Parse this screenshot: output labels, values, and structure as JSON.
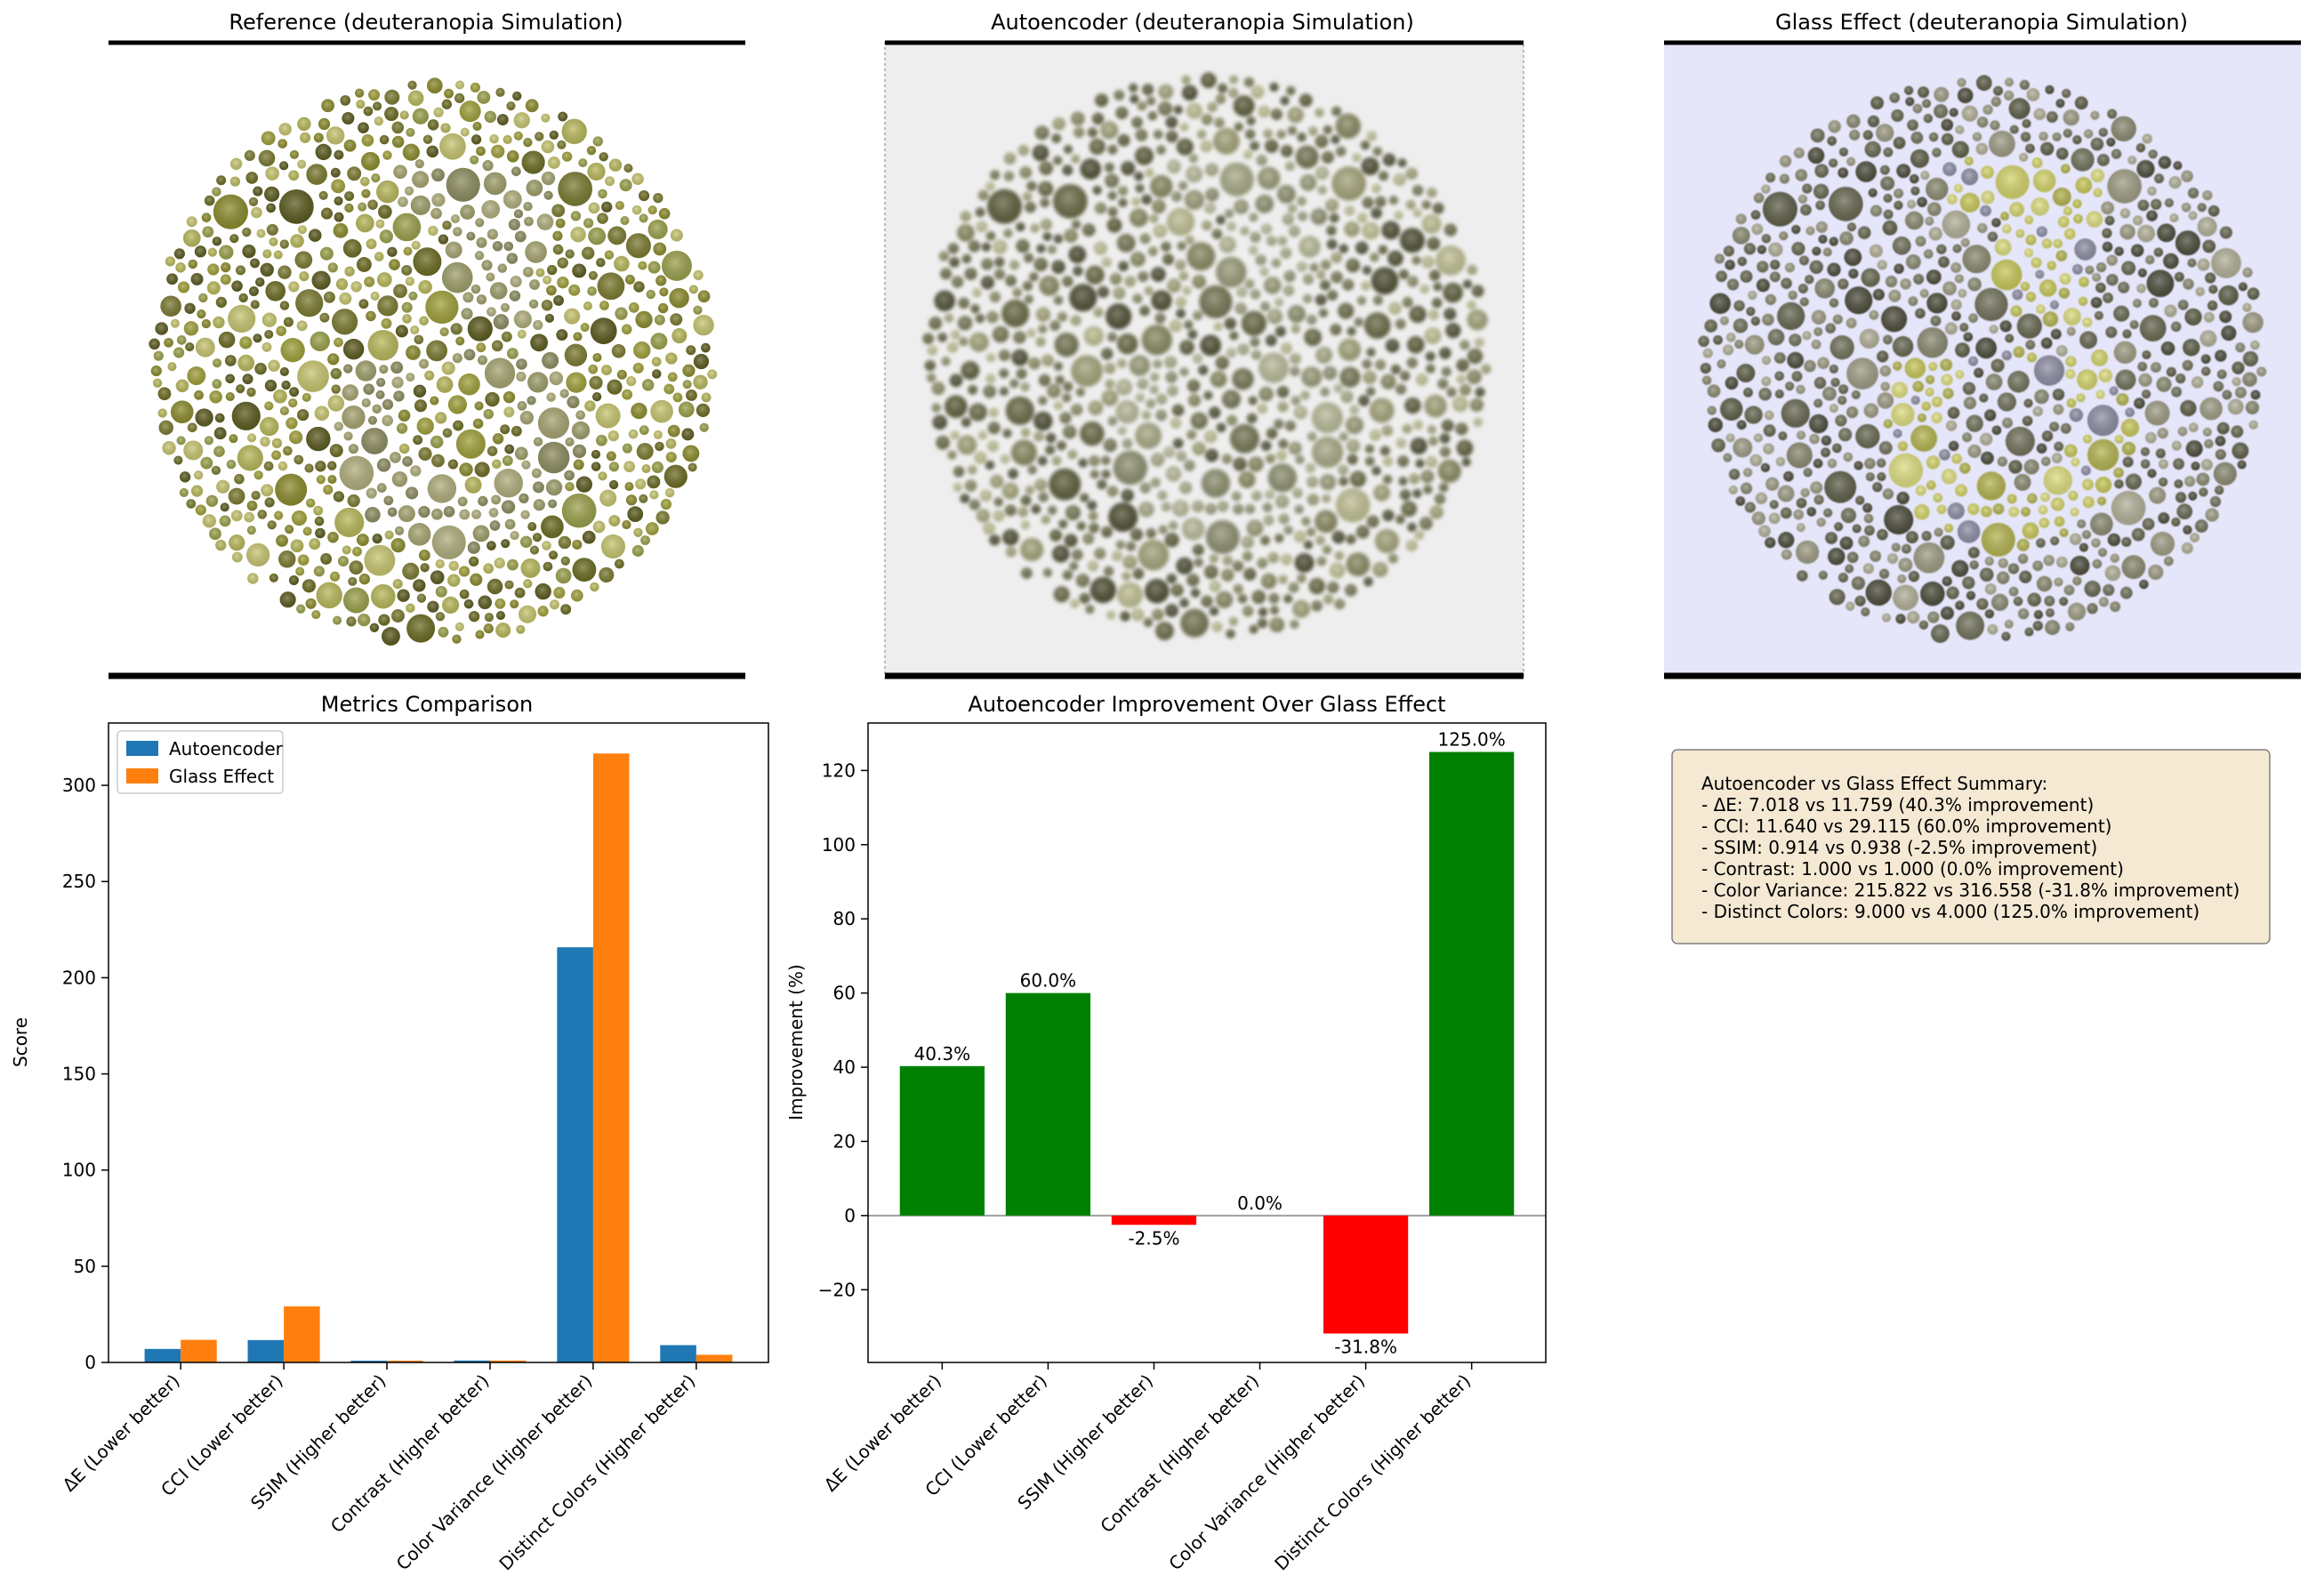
{
  "panels": [
    {
      "title": "Reference (deuteranopia Simulation)",
      "plate": "reference"
    },
    {
      "title": "Autoencoder (deuteranopia Simulation)",
      "plate": "autoencoder"
    },
    {
      "title": "Glass Effect (deuteranopia Simulation)",
      "plate": "glass"
    }
  ],
  "colors": {
    "autoencoder": "#1f77b4",
    "glass": "#ff7f0e",
    "positive": "#008000",
    "negative": "#ff0000",
    "summary_bg": "#f5e9d4",
    "summary_border": "#7f7f7f"
  },
  "chart_data": [
    {
      "type": "bar",
      "title": "Metrics Comparison",
      "xlabel": "",
      "ylabel": "Score",
      "categories": [
        "ΔE (Lower better)",
        "CCI (Lower better)",
        "SSIM (Higher better)",
        "Contrast (Higher better)",
        "Color Variance (Higher better)",
        "Distinct Colors (Higher better)"
      ],
      "series": [
        {
          "name": "Autoencoder",
          "values": [
            7.018,
            11.64,
            0.914,
            1.0,
            215.822,
            9.0
          ]
        },
        {
          "name": "Glass Effect",
          "values": [
            11.759,
            29.115,
            0.938,
            1.0,
            316.558,
            4.0
          ]
        }
      ],
      "ylim": [
        0,
        332.4
      ],
      "yticks": [
        0,
        50,
        100,
        150,
        200,
        250,
        300
      ],
      "legend": "upper-left",
      "grid": false
    },
    {
      "type": "bar",
      "title": "Autoencoder Improvement Over Glass Effect",
      "xlabel": "",
      "ylabel": "Improvement (%)",
      "categories": [
        "ΔE (Lower better)",
        "CCI (Lower better)",
        "SSIM (Higher better)",
        "Contrast (Higher better)",
        "Color Variance (Higher better)",
        "Distinct Colors (Higher better)"
      ],
      "values": [
        40.3,
        60.0,
        -2.5,
        0.0,
        -31.8,
        125.0
      ],
      "labels": [
        "40.3%",
        "60.0%",
        "-2.5%",
        "0.0%",
        "-31.8%",
        "125.0%"
      ],
      "ylim": [
        -39.6,
        132.8
      ],
      "yticks": [
        -20,
        0,
        20,
        40,
        60,
        80,
        100,
        120
      ],
      "grid": false
    }
  ],
  "summary": {
    "lines": [
      "Autoencoder vs Glass Effect Summary:",
      "- ΔE: 7.018 vs 11.759 (40.3% improvement)",
      "- CCI: 11.640 vs 29.115 (60.0% improvement)",
      "- SSIM: 0.914 vs 0.938 (-2.5% improvement)",
      "- Contrast: 1.000 vs 1.000 (0.0% improvement)",
      "- Color Variance: 215.822 vs 316.558 (-31.8% improvement)",
      "- Distinct Colors: 9.000 vs 4.000 (125.0% improvement)"
    ]
  }
}
